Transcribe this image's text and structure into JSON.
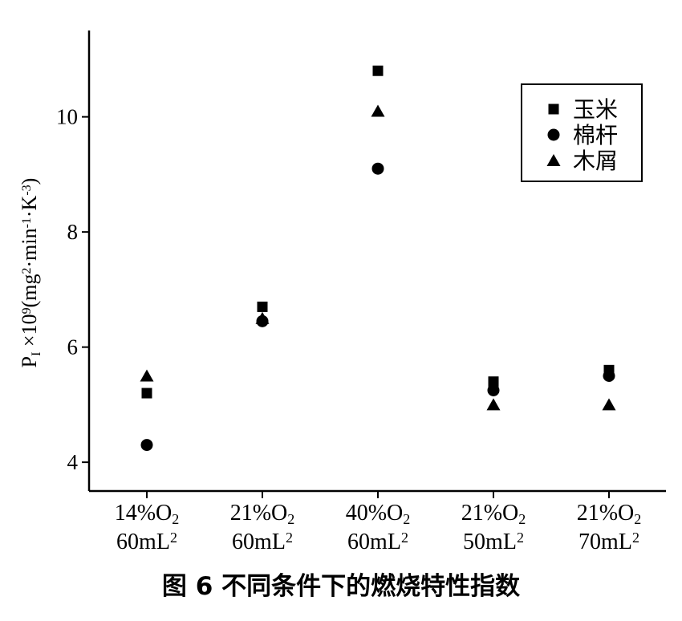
{
  "chart_data": {
    "type": "scatter",
    "caption": "图 6    不同条件下的燃烧特性指数",
    "ylabel": {
      "prefix": "P",
      "prefix_sub": "I",
      "mult": " ×10",
      "mult_sup": "9",
      "unit_open": "(mg",
      "unit_sup1": "2",
      "unit_mid": "·min",
      "unit_sup2": "-1",
      "unit_k": "·K",
      "unit_sup3": "-3",
      "unit_close": ")"
    },
    "ylim": [
      3.5,
      11.5
    ],
    "yticks": [
      {
        "value": 4,
        "label": "4"
      },
      {
        "value": 6,
        "label": "6"
      },
      {
        "value": 8,
        "label": "8"
      },
      {
        "value": 10,
        "label": "10"
      }
    ],
    "categories": [
      {
        "line1": "14%O",
        "line1_sub": "2",
        "line2": "60mL",
        "line2_sup": "2"
      },
      {
        "line1": "21%O",
        "line1_sub": "2",
        "line2": "60mL",
        "line2_sup": "2"
      },
      {
        "line1": "40%O",
        "line1_sub": "2",
        "line2": "60mL",
        "line2_sup": "2"
      },
      {
        "line1": "21%O",
        "line1_sub": "2",
        "line2": "50mL",
        "line2_sup": "2"
      },
      {
        "line1": "21%O",
        "line1_sub": "2",
        "line2": "70mL",
        "line2_sup": "2"
      }
    ],
    "series": [
      {
        "name": "玉米",
        "marker": "square",
        "values": [
          5.2,
          6.7,
          10.8,
          5.4,
          5.6
        ]
      },
      {
        "name": "棉杆",
        "marker": "circle",
        "values": [
          4.3,
          6.45,
          9.1,
          5.25,
          5.5
        ]
      },
      {
        "name": "木屑",
        "marker": "triangle",
        "values": [
          5.5,
          6.5,
          10.1,
          5.0,
          5.0
        ]
      }
    ],
    "legend_position": "top-right",
    "grid": false
  }
}
